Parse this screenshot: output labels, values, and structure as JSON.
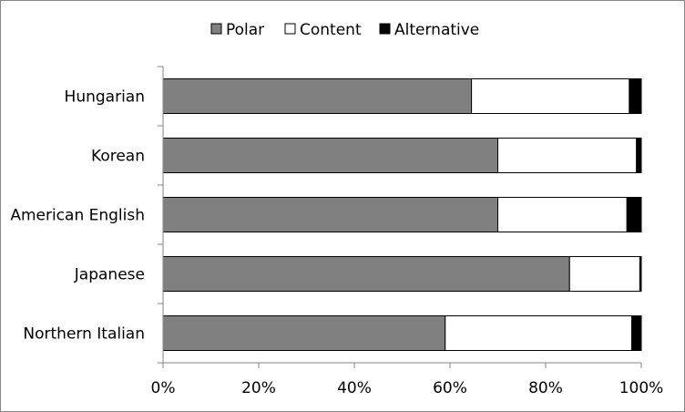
{
  "chart_data": {
    "type": "bar",
    "orientation": "horizontal",
    "stacked": "percent",
    "categories": [
      "Hungarian",
      "Korean",
      "American English",
      "Japanese",
      "Northern Italian"
    ],
    "series": [
      {
        "name": "Polar",
        "color": "#808080",
        "values": [
          64.5,
          70,
          70,
          85,
          59
        ]
      },
      {
        "name": "Content",
        "color": "#ffffff",
        "values": [
          33,
          29,
          27,
          14.7,
          39
        ]
      },
      {
        "name": "Alternative",
        "color": "#000000",
        "values": [
          2.5,
          1,
          3,
          0.3,
          2
        ]
      }
    ],
    "x_ticks": [
      "0%",
      "20%",
      "40%",
      "60%",
      "80%",
      "100%"
    ],
    "xlim": [
      0,
      100
    ],
    "grid": false,
    "legend": "top-center"
  }
}
